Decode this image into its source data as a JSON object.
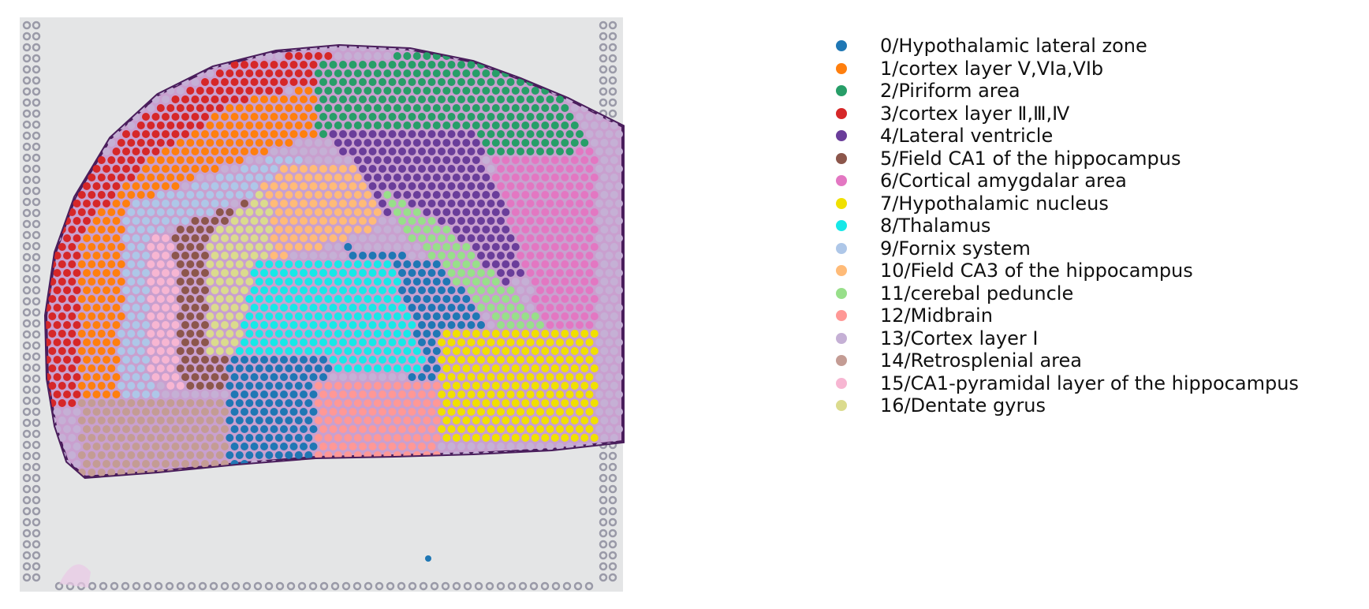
{
  "figure": {
    "background_color": "#e4e5e6",
    "tissue_color": "#c9a0cf",
    "outline_color": "#4a1e5c",
    "fiducial_color": "#9a9aa8"
  },
  "legend": {
    "items": [
      {
        "label": "0/Hypothalamic lateral zone",
        "color": "#1f77b4"
      },
      {
        "label": "1/cortex layer V,VIa,VIb",
        "color": "#ff7f0e"
      },
      {
        "label": "2/Piriform area",
        "color": "#279e68"
      },
      {
        "label": "3/cortex layer Ⅱ,Ⅲ,Ⅳ",
        "color": "#d62728"
      },
      {
        "label": "4/Lateral ventricle",
        "color": "#6a3d9a"
      },
      {
        "label": "5/Field CA1 of the hippocampus",
        "color": "#8c564b"
      },
      {
        "label": "6/Cortical amygdalar area",
        "color": "#e377c2"
      },
      {
        "label": "7/Hypothalamic nucleus",
        "color": "#f0e000"
      },
      {
        "label": "8/Thalamus",
        "color": "#17e8e8"
      },
      {
        "label": "9/Fornix system",
        "color": "#aec7e8"
      },
      {
        "label": "10/Field CA3 of the hippocampus",
        "color": "#ffbb78"
      },
      {
        "label": "11/cerebal peduncle",
        "color": "#98df8a"
      },
      {
        "label": "12/Midbrain",
        "color": "#ff9896"
      },
      {
        "label": "13/Cortex layer I",
        "color": "#c5b0d5"
      },
      {
        "label": "14/Retrosplenial area",
        "color": "#c49c94"
      },
      {
        "label": "15/CA1-pyramidal layer of the hippocampus",
        "color": "#f7b6d2"
      },
      {
        "label": "16/Dentate gyrus",
        "color": "#dbdb8d"
      }
    ]
  }
}
